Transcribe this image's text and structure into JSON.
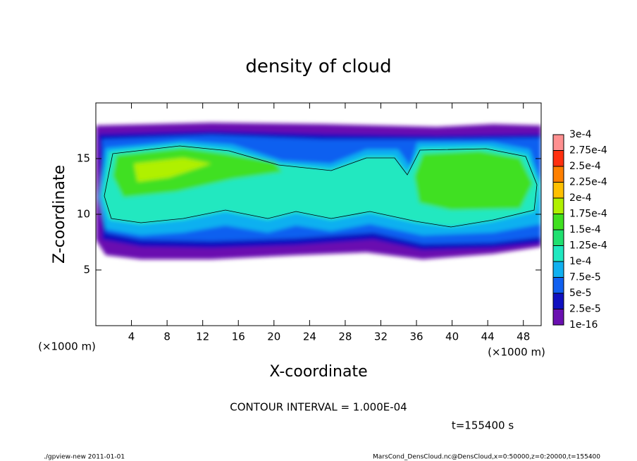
{
  "chart_data": {
    "type": "contour",
    "title": "density of cloud",
    "x_label": "X-coordinate",
    "y_label": "Z-coordinate",
    "x_unit": "(×1000 m)",
    "y_unit": "(×1000 m)",
    "xlim": [
      0,
      50
    ],
    "xticks": [
      4,
      8,
      12,
      16,
      20,
      24,
      28,
      32,
      36,
      40,
      44,
      48
    ],
    "ylim": [
      0,
      20
    ],
    "yticks": [
      5,
      10,
      15
    ],
    "levels": [
      1e-16,
      {
        "value": 2.5e-05,
        "label": "2.5e-5"
      },
      {
        "value": 5e-05,
        "label": "5e-5"
      },
      {
        "value": 7.5e-05,
        "label": "7.5e-5"
      },
      {
        "value": 0.0001,
        "label": "1e-4"
      },
      {
        "value": 0.000125,
        "label": "1.25e-4"
      },
      {
        "value": 0.00015,
        "label": "1.5e-4"
      },
      {
        "value": 0.000175,
        "label": "1.75e-4"
      },
      {
        "value": 0.0002,
        "label": "2e-4"
      },
      {
        "value": 0.000225,
        "label": "2.25e-4"
      },
      {
        "value": 0.00025,
        "label": "2.5e-4"
      },
      {
        "value": 0.000275,
        "label": "2.75e-4"
      },
      {
        "value": 0.0003,
        "label": "3e-4"
      }
    ],
    "level_colors": [
      "#6a10b0",
      "#1010c0",
      "#1060f0",
      "#10b0f0",
      "#20e8c0",
      "#20e070",
      "#40e020",
      "#b0f000",
      "#ffc000",
      "#ff8000",
      "#ff3010",
      "#ff9090"
    ],
    "contour_interval": "CONTOUR INTERVAL = 1.000E-04",
    "time_label": "t=155400 s",
    "footer_left": "./gpview-new  2011-01-01",
    "footer_right": "MarsCond_DensCloud.nc@DensCloud,x=0:50000,z=0:20000,t=155400"
  }
}
